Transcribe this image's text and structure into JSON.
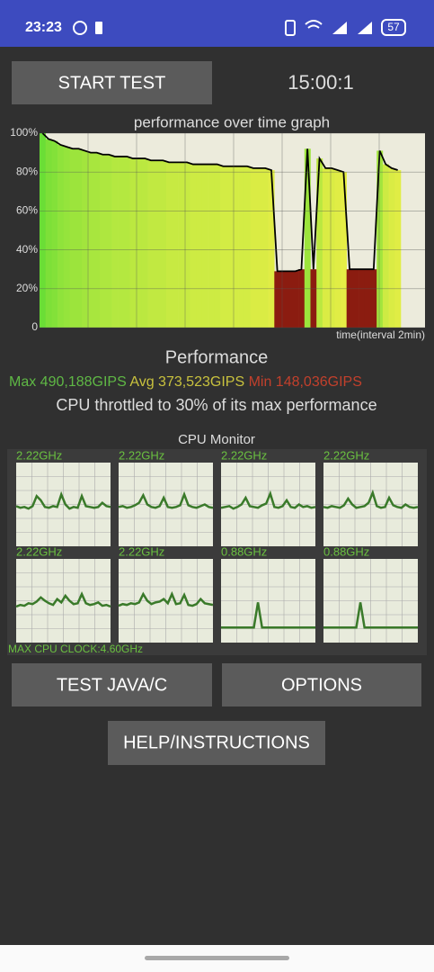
{
  "status_bar": {
    "time": "23:23",
    "battery": "57"
  },
  "controls": {
    "start_button": "START TEST",
    "timer": "15:00:1"
  },
  "chart_data": {
    "type": "bar",
    "title": "performance over time graph",
    "x_label": "time(interval 2min)",
    "values": [
      100,
      97,
      96,
      94,
      93,
      92,
      92,
      91,
      90,
      90,
      89,
      89,
      88,
      88,
      88,
      87,
      87,
      87,
      86,
      86,
      86,
      85,
      85,
      85,
      85,
      84,
      84,
      84,
      84,
      84,
      83,
      83,
      83,
      83,
      83,
      82,
      82,
      82,
      81,
      29,
      29,
      29,
      29,
      30,
      92,
      30,
      87,
      82,
      82,
      81,
      80,
      30,
      30,
      30,
      30,
      30,
      91,
      84,
      82,
      81
    ],
    "ylim": [
      0,
      100
    ],
    "yticks": [
      0,
      {
        "value": 20,
        "label": "20%"
      },
      {
        "value": 40,
        "label": "40%"
      },
      {
        "value": 60,
        "label": "60%"
      },
      {
        "value": 80,
        "label": "80%"
      },
      {
        "value": 100,
        "label": "100%"
      }
    ],
    "grid": true,
    "color_high": "#6ade36",
    "color_mid": "#e6ee46",
    "color_low": "#8b1c10",
    "line_color": "#000000"
  },
  "performance": {
    "heading": "Performance",
    "max": "Max 490,188GIPS",
    "avg": "Avg 373,523GIPS",
    "min": "Min 148,036GIPS",
    "note": "CPU throttled to 30% of its max performance"
  },
  "cpu_monitor": {
    "title": "CPU Monitor",
    "max_clock": "MAX CPU CLOCK:4.60GHz",
    "cores": [
      {
        "freq": "2.22GHz",
        "values": [
          48,
          46,
          47,
          45,
          48,
          60,
          55,
          47,
          46,
          48,
          47,
          62,
          50,
          45,
          47,
          46,
          60,
          48,
          47,
          46,
          47,
          52,
          48,
          47
        ]
      },
      {
        "freq": "2.22GHz",
        "values": [
          47,
          48,
          46,
          47,
          49,
          52,
          61,
          50,
          47,
          46,
          48,
          58,
          47,
          46,
          47,
          49,
          62,
          49,
          47,
          46,
          48,
          50,
          47,
          46
        ]
      },
      {
        "freq": "2.22GHz",
        "values": [
          46,
          47,
          48,
          45,
          47,
          50,
          58,
          48,
          47,
          46,
          49,
          51,
          63,
          47,
          46,
          48,
          55,
          47,
          46,
          50,
          47,
          48,
          46,
          47
        ]
      },
      {
        "freq": "2.22GHz",
        "values": [
          47,
          46,
          48,
          47,
          46,
          49,
          57,
          50,
          46,
          47,
          48,
          52,
          64,
          48,
          46,
          47,
          58,
          49,
          47,
          46,
          50,
          47,
          46,
          47
        ]
      },
      {
        "freq": "2.22GHz",
        "values": [
          43,
          45,
          44,
          47,
          46,
          49,
          54,
          50,
          47,
          45,
          52,
          48,
          56,
          50,
          46,
          47,
          58,
          47,
          45,
          46,
          48,
          44,
          45,
          43
        ]
      },
      {
        "freq": "2.22GHz",
        "values": [
          44,
          46,
          45,
          47,
          46,
          48,
          58,
          50,
          46,
          48,
          49,
          52,
          47,
          58,
          46,
          47,
          57,
          45,
          44,
          46,
          52,
          47,
          46,
          45
        ]
      },
      {
        "freq": "0.88GHz",
        "values": [
          18,
          18,
          18,
          18,
          18,
          18,
          18,
          18,
          18,
          48,
          18,
          18,
          18,
          18,
          18,
          18,
          18,
          18,
          18,
          18,
          18,
          18,
          18,
          18
        ]
      },
      {
        "freq": "0.88GHz",
        "values": [
          18,
          18,
          18,
          18,
          18,
          18,
          18,
          18,
          18,
          48,
          18,
          18,
          18,
          18,
          18,
          18,
          18,
          18,
          18,
          18,
          18,
          18,
          18,
          18
        ]
      }
    ]
  },
  "buttons": {
    "test_java": "TEST JAVA/C",
    "options": "OPTIONS",
    "help": "HELP/INSTRUCTIONS"
  }
}
